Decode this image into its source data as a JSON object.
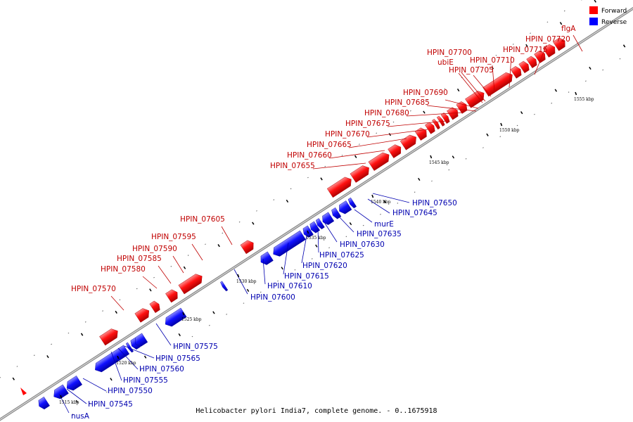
{
  "caption": "Helicobacter pylori India7, complete genome. - 0..1675918",
  "legend": {
    "forward_label": "Forward",
    "reverse_label": "Reverse",
    "forward_color": "#ff0000",
    "reverse_color": "#0000ff"
  },
  "tick_labels": [
    "1515 kbp",
    "1520 kbp",
    "1525 kbp",
    "1530 kbp",
    "1535 kbp",
    "1540 kbp",
    "1545 kbp",
    "1550 kbp",
    "1555 kbp"
  ],
  "forward_labels": [
    "HPIN_07570",
    "HPIN_07580",
    "HPIN_07585",
    "HPIN_07590",
    "HPIN_07595",
    "HPIN_07605",
    "HPIN_07655",
    "HPIN_07660",
    "HPIN_07665",
    "HPIN_07670",
    "HPIN_07675",
    "HPIN_07680",
    "HPIN_07685",
    "HPIN_07690",
    "HPIN_07700",
    "ubiE",
    "HPIN_07705",
    "HPIN_07710",
    "HPIN_07715",
    "HPIN_07720",
    "flgA"
  ],
  "reverse_labels": [
    "nusA",
    "HPIN_07545",
    "HPIN_07550",
    "HPIN_07555",
    "HPIN_07560",
    "HPIN_07565",
    "HPIN_07575",
    "HPIN_07600",
    "HPIN_07610",
    "HPIN_07615",
    "HPIN_07620",
    "HPIN_07625",
    "HPIN_07630",
    "HPIN_07635",
    "murE",
    "HPIN_07645",
    "HPIN_07650"
  ]
}
